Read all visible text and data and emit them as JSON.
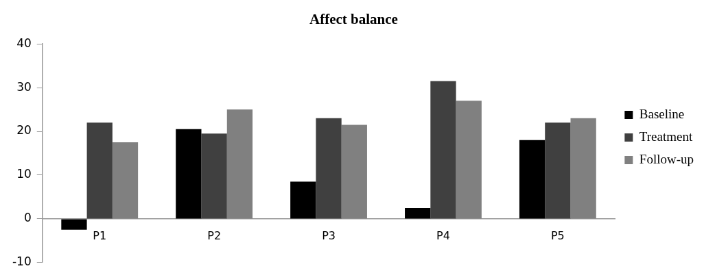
{
  "chart_data": {
    "type": "bar",
    "title": "Affect balance",
    "categories": [
      "P1",
      "P2",
      "P3",
      "P4",
      "P5"
    ],
    "series": [
      {
        "name": "Baseline",
        "color": "#000000",
        "values": [
          -2.5,
          20.5,
          8.5,
          2.5,
          18
        ]
      },
      {
        "name": "Treatment",
        "color": "#404040",
        "values": [
          22,
          19.5,
          23,
          31.5,
          22
        ]
      },
      {
        "name": "Follow-up",
        "color": "#808080",
        "values": [
          17.5,
          25,
          21.5,
          27,
          23
        ]
      }
    ],
    "ylim": [
      -10,
      40
    ],
    "yticks": [
      -10,
      0,
      10,
      20,
      30,
      40
    ],
    "grid": false,
    "legend": "right"
  }
}
